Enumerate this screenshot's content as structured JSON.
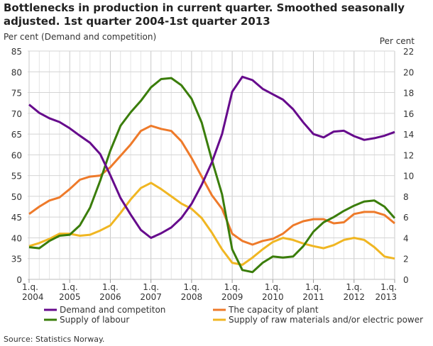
{
  "chart_data": {
    "type": "line",
    "title": "Bottlenecks in production in current quarter. Smoothed seasonally adjusted. 1st quarter 2004-1st quarter 2013",
    "ylabel_left": "Per cent (Demand and competition)",
    "ylabel_right": "Per cent",
    "source": "Source: Statistics Norway.",
    "x_start": "1.q. 2004",
    "x_end": "1.q. 2013",
    "x_ticks": [
      {
        "q": "1.q.",
        "year": "2004"
      },
      {
        "q": "1.q.",
        "year": "2005"
      },
      {
        "q": "1.q.",
        "year": "2006"
      },
      {
        "q": "1.q.",
        "year": "2007"
      },
      {
        "q": "1.q.",
        "year": "2008"
      },
      {
        "q": "1.q.",
        "year": "2009"
      },
      {
        "q": "1.q.",
        "year": "2010"
      },
      {
        "q": "1.q.",
        "year": "2011"
      },
      {
        "q": "1.q.",
        "year": "2012"
      },
      {
        "q": "1.q.",
        "year": "2013"
      }
    ],
    "y_left_ticks": [
      "85",
      "80",
      "75",
      "70",
      "65",
      "60",
      "55",
      "50",
      "45",
      "40",
      "35",
      "0"
    ],
    "y_left_range": [
      0,
      85
    ],
    "y_left_broken": "0 to 35",
    "y_right_ticks": [
      "22",
      "20",
      "18",
      "16",
      "14",
      "12",
      "10",
      "8",
      "6",
      "4",
      "2",
      "0"
    ],
    "y_right_range": [
      0,
      22
    ],
    "grid": true,
    "legend_position": "bottom",
    "series": [
      {
        "name": "Demand and competiton",
        "axis": "left",
        "color": "#660a8c",
        "values": [
          72.1,
          70.1,
          68.8,
          67.9,
          66.4,
          64.6,
          62.9,
          60.2,
          55.1,
          49.6,
          45.6,
          41.9,
          40.0,
          41.1,
          42.5,
          44.8,
          48.2,
          52.8,
          58.2,
          65.0,
          75.2,
          78.8,
          78.0,
          75.9,
          74.6,
          73.3,
          71.0,
          67.8,
          65.0,
          64.2,
          65.6,
          65.8,
          64.5,
          63.6,
          64.0,
          64.6,
          65.5
        ]
      },
      {
        "name": "The capacity of plant",
        "axis": "right",
        "color": "#ee7a2a",
        "values": [
          6.3,
          7.0,
          7.6,
          7.9,
          8.7,
          9.6,
          9.9,
          10.0,
          10.8,
          11.9,
          13.0,
          14.3,
          14.8,
          14.5,
          14.3,
          13.3,
          11.7,
          9.9,
          8.1,
          6.8,
          4.4,
          3.7,
          3.35,
          3.7,
          3.9,
          4.4,
          5.2,
          5.6,
          5.8,
          5.8,
          5.4,
          5.5,
          6.3,
          6.5,
          6.5,
          6.2,
          5.4
        ]
      },
      {
        "name": "Supply of labour",
        "axis": "right",
        "color": "#3a7d0a",
        "values": [
          3.1,
          3.0,
          3.7,
          4.2,
          4.3,
          5.2,
          6.9,
          9.5,
          12.4,
          14.8,
          16.1,
          17.2,
          18.5,
          19.3,
          19.4,
          18.7,
          17.4,
          15.1,
          11.5,
          8.2,
          2.9,
          0.9,
          0.7,
          1.6,
          2.2,
          2.1,
          2.2,
          3.2,
          4.6,
          5.5,
          6.0,
          6.6,
          7.1,
          7.5,
          7.6,
          7.0,
          5.9
        ]
      },
      {
        "name": "Supply of raw materials and/or electric power",
        "axis": "right",
        "color": "#f0b622",
        "values": [
          3.2,
          3.5,
          3.9,
          4.4,
          4.4,
          4.2,
          4.3,
          4.7,
          5.2,
          6.4,
          7.7,
          8.8,
          9.3,
          8.7,
          8.0,
          7.3,
          6.8,
          5.9,
          4.5,
          2.9,
          1.6,
          1.4,
          2.1,
          2.9,
          3.6,
          4.0,
          3.8,
          3.45,
          3.2,
          3.0,
          3.3,
          3.8,
          4.0,
          3.8,
          3.1,
          2.2,
          2.0
        ]
      }
    ]
  }
}
